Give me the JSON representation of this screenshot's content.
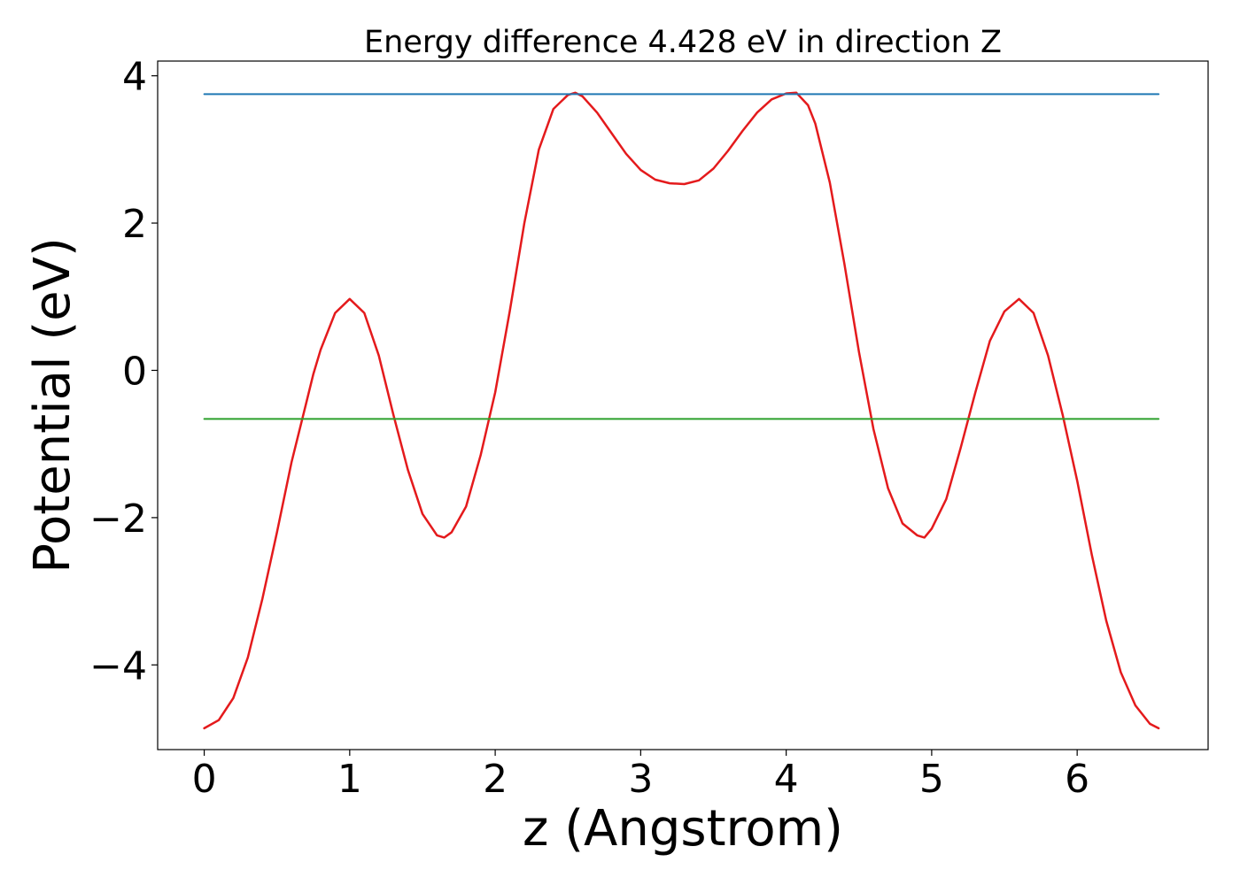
{
  "chart_data": {
    "type": "line",
    "title": "Energy difference 4.428 eV in direction Z",
    "xlabel": "z (Angstrom)",
    "ylabel": "Potential (eV)",
    "xlim": [
      -0.32,
      6.9
    ],
    "ylim": [
      -5.15,
      4.2
    ],
    "xticks": [
      0,
      1,
      2,
      3,
      4,
      5,
      6
    ],
    "xtick_labels": [
      "0",
      "1",
      "2",
      "3",
      "4",
      "5",
      "6"
    ],
    "yticks": [
      4,
      2,
      0,
      -2,
      -4
    ],
    "ytick_labels": [
      "4",
      "2",
      "0",
      "−2",
      "−4"
    ],
    "grid": false,
    "legend": "none",
    "series": [
      {
        "color": "#e41a1c",
        "x": [
          0,
          0.1,
          0.2,
          0.3,
          0.4,
          0.5,
          0.6,
          0.7,
          0.75,
          0.8,
          0.9,
          1.0,
          1.1,
          1.2,
          1.3,
          1.4,
          1.5,
          1.6,
          1.65,
          1.7,
          1.8,
          1.9,
          2.0,
          2.1,
          2.2,
          2.3,
          2.4,
          2.5,
          2.55,
          2.6,
          2.7,
          2.8,
          2.9,
          3.0,
          3.1,
          3.2,
          3.3,
          3.4,
          3.5,
          3.6,
          3.7,
          3.8,
          3.9,
          4.0,
          4.07,
          4.15,
          4.2,
          4.3,
          4.4,
          4.5,
          4.6,
          4.7,
          4.8,
          4.9,
          4.95,
          5.0,
          5.1,
          5.2,
          5.3,
          5.4,
          5.5,
          5.6,
          5.7,
          5.8,
          5.9,
          6.0,
          6.1,
          6.2,
          6.3,
          6.4,
          6.5,
          6.56
        ],
        "y": [
          -4.86,
          -4.75,
          -4.45,
          -3.9,
          -3.1,
          -2.2,
          -1.25,
          -0.45,
          -0.05,
          0.28,
          0.78,
          0.97,
          0.78,
          0.2,
          -0.6,
          -1.35,
          -1.95,
          -2.24,
          -2.27,
          -2.2,
          -1.85,
          -1.15,
          -0.3,
          0.8,
          2.0,
          3.0,
          3.55,
          3.74,
          3.77,
          3.72,
          3.5,
          3.22,
          2.94,
          2.72,
          2.59,
          2.54,
          2.53,
          2.58,
          2.74,
          2.98,
          3.25,
          3.5,
          3.68,
          3.76,
          3.77,
          3.6,
          3.35,
          2.55,
          1.45,
          0.25,
          -0.8,
          -1.6,
          -2.08,
          -2.24,
          -2.27,
          -2.15,
          -1.75,
          -1.05,
          -0.3,
          0.4,
          0.8,
          0.97,
          0.78,
          0.2,
          -0.6,
          -1.5,
          -2.5,
          -3.4,
          -4.1,
          -4.55,
          -4.8,
          -4.86
        ]
      },
      {
        "color": "#1f77b4",
        "x": [
          0,
          6.56
        ],
        "y": [
          3.75,
          3.75
        ]
      },
      {
        "color": "#2ca02c",
        "x": [
          0,
          6.56
        ],
        "y": [
          -0.66,
          -0.66
        ]
      }
    ]
  }
}
